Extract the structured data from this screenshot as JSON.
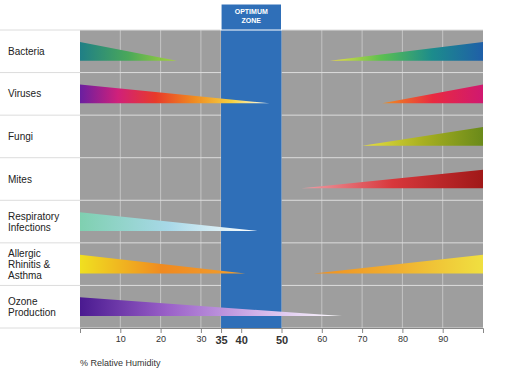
{
  "chart_data": {
    "type": "range_wedge",
    "categories": [
      "Bacteria",
      "Viruses",
      "Fungi",
      "Mites",
      "Respiratory Infections",
      "Allergic Rhinitis & Asthma",
      "Ozone Production"
    ],
    "ranges": [
      [
        [
          0,
          24
        ],
        [
          62,
          100
        ]
      ],
      [
        [
          0,
          47
        ],
        [
          75,
          100
        ]
      ],
      [
        [
          70,
          100
        ]
      ],
      [
        [
          55,
          100
        ]
      ],
      [
        [
          0,
          44
        ]
      ],
      [
        [
          0,
          41
        ],
        [
          58,
          100
        ]
      ],
      [
        [
          0,
          65
        ]
      ]
    ],
    "xlim": [
      0,
      100
    ],
    "xticks": [
      10,
      20,
      30,
      35,
      40,
      50,
      60,
      70,
      80,
      90
    ],
    "xlabel": "% Relative Humidity",
    "band": {
      "label": "OPTIMUM ZONE",
      "range": [
        35,
        50
      ]
    },
    "grid": true
  }
}
